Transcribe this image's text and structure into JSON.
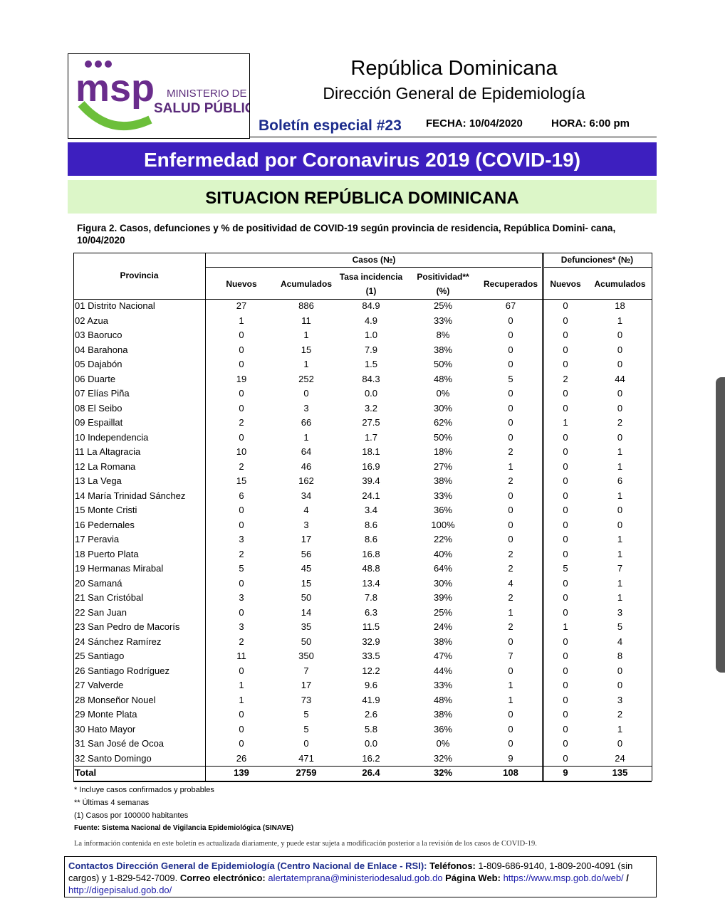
{
  "header": {
    "logo_acronym": "msp",
    "logo_line1": "MINISTERIO DE",
    "logo_line2": "SALUD PÚBLICA",
    "country": "República Dominicana",
    "department": "Dirección General de Epidemiología",
    "bulletin": "Boletín especial #23",
    "date": "FECHA: 10/04/2020",
    "time": "HORA: 6:00 pm"
  },
  "banner": "Enfermedad por Coronavirus 2019 (COVID-19)",
  "subbanner": "SITUACION REPÚBLICA DOMINICANA",
  "figure_caption": "Figura 2. Casos, defunciones y % de positividad de COVID-19 según provincia de residencia, República Domini- cana, 10/04/2020",
  "table": {
    "group_headers": [
      "Casos (№)",
      "Defunciones* (№)"
    ],
    "columns": [
      "Provincia",
      "Nuevos",
      "Acumulados",
      "Tasa incidencia (1)",
      "Positividad** (%)",
      "Recuperados",
      "Nuevos",
      "Acumulados"
    ],
    "rows": [
      [
        "01 Distrito Nacional",
        "27",
        "886",
        "84.9",
        "25%",
        "67",
        "0",
        "18"
      ],
      [
        "02 Azua",
        "1",
        "11",
        "4.9",
        "33%",
        "0",
        "0",
        "1"
      ],
      [
        "03 Baoruco",
        "0",
        "1",
        "1.0",
        "8%",
        "0",
        "0",
        "0"
      ],
      [
        "04 Barahona",
        "0",
        "15",
        "7.9",
        "38%",
        "0",
        "0",
        "0"
      ],
      [
        "05 Dajabón",
        "0",
        "1",
        "1.5",
        "50%",
        "0",
        "0",
        "0"
      ],
      [
        "06 Duarte",
        "19",
        "252",
        "84.3",
        "48%",
        "5",
        "2",
        "44"
      ],
      [
        "07 Elías Piña",
        "0",
        "0",
        "0.0",
        "0%",
        "0",
        "0",
        "0"
      ],
      [
        "08 El Seibo",
        "0",
        "3",
        "3.2",
        "30%",
        "0",
        "0",
        "0"
      ],
      [
        "09 Espaillat",
        "2",
        "66",
        "27.5",
        "62%",
        "0",
        "1",
        "2"
      ],
      [
        "10 Independencia",
        "0",
        "1",
        "1.7",
        "50%",
        "0",
        "0",
        "0"
      ],
      [
        "11 La Altagracia",
        "10",
        "64",
        "18.1",
        "18%",
        "2",
        "0",
        "1"
      ],
      [
        "12 La Romana",
        "2",
        "46",
        "16.9",
        "27%",
        "1",
        "0",
        "1"
      ],
      [
        "13 La Vega",
        "15",
        "162",
        "39.4",
        "38%",
        "2",
        "0",
        "6"
      ],
      [
        "14 María Trinidad Sánchez",
        "6",
        "34",
        "24.1",
        "33%",
        "0",
        "0",
        "1"
      ],
      [
        "15 Monte Cristi",
        "0",
        "4",
        "3.4",
        "36%",
        "0",
        "0",
        "0"
      ],
      [
        "16 Pedernales",
        "0",
        "3",
        "8.6",
        "100%",
        "0",
        "0",
        "0"
      ],
      [
        "17 Peravia",
        "3",
        "17",
        "8.6",
        "22%",
        "0",
        "0",
        "1"
      ],
      [
        "18 Puerto Plata",
        "2",
        "56",
        "16.8",
        "40%",
        "2",
        "0",
        "1"
      ],
      [
        "19 Hermanas Mirabal",
        "5",
        "45",
        "48.8",
        "64%",
        "2",
        "5",
        "7"
      ],
      [
        "20 Samaná",
        "0",
        "15",
        "13.4",
        "30%",
        "4",
        "0",
        "1"
      ],
      [
        "21 San Cristóbal",
        "3",
        "50",
        "7.8",
        "39%",
        "2",
        "0",
        "1"
      ],
      [
        "22 San Juan",
        "0",
        "14",
        "6.3",
        "25%",
        "1",
        "0",
        "3"
      ],
      [
        "23 San Pedro de Macorís",
        "3",
        "35",
        "11.5",
        "24%",
        "2",
        "1",
        "5"
      ],
      [
        "24 Sánchez Ramírez",
        "2",
        "50",
        "32.9",
        "38%",
        "0",
        "0",
        "4"
      ],
      [
        "25 Santiago",
        "11",
        "350",
        "33.5",
        "47%",
        "7",
        "0",
        "8"
      ],
      [
        "26 Santiago Rodríguez",
        "0",
        "7",
        "12.2",
        "44%",
        "0",
        "0",
        "0"
      ],
      [
        "27 Valverde",
        "1",
        "17",
        "9.6",
        "33%",
        "1",
        "0",
        "0"
      ],
      [
        "28 Monseñor Nouel",
        "1",
        "73",
        "41.9",
        "48%",
        "1",
        "0",
        "3"
      ],
      [
        "29 Monte Plata",
        "0",
        "5",
        "2.6",
        "38%",
        "0",
        "0",
        "2"
      ],
      [
        "30 Hato Mayor",
        "0",
        "5",
        "5.8",
        "36%",
        "0",
        "0",
        "1"
      ],
      [
        "31 San José de Ocoa",
        "0",
        "0",
        "0.0",
        "0%",
        "0",
        "0",
        "0"
      ],
      [
        "32 Santo Domingo",
        "26",
        "471",
        "16.2",
        "32%",
        "9",
        "0",
        "24"
      ]
    ],
    "total": [
      "Total",
      "139",
      "2759",
      "26.4",
      "32%",
      "108",
      "9",
      "135"
    ]
  },
  "footnotes": [
    "* Incluye casos confirmados y probables",
    "** Últimas 4 semanas",
    "(1) Casos por 100000 habitantes"
  ],
  "source": "Fuente: Sistema Nacional de Vigilancia Epidemiológica (SINAVE)",
  "disclaimer": "La información contenida en este boletín es actualizada diariamente, y puede estar sujeta a modificación posterior a la revisión de los casos de COVID-19.",
  "contacts": {
    "heading": "Contactos Dirección General de Epidemiología (Centro Nacional de Enlace - RSI):",
    "phone_label": "Teléfonos:",
    "phones": "1-809-686-9140, 1-809-200-4091 (sin cargos) y 1-829-542-7009.",
    "email_label": "Correo electrónico:",
    "email": "alertatemprana@ministeriodesalud.gob.do",
    "web_label": "Página Web:",
    "web1": "https://www.msp.gob.do/web/",
    "separator": "/",
    "web2": "http://digepisalud.gob.do/"
  }
}
